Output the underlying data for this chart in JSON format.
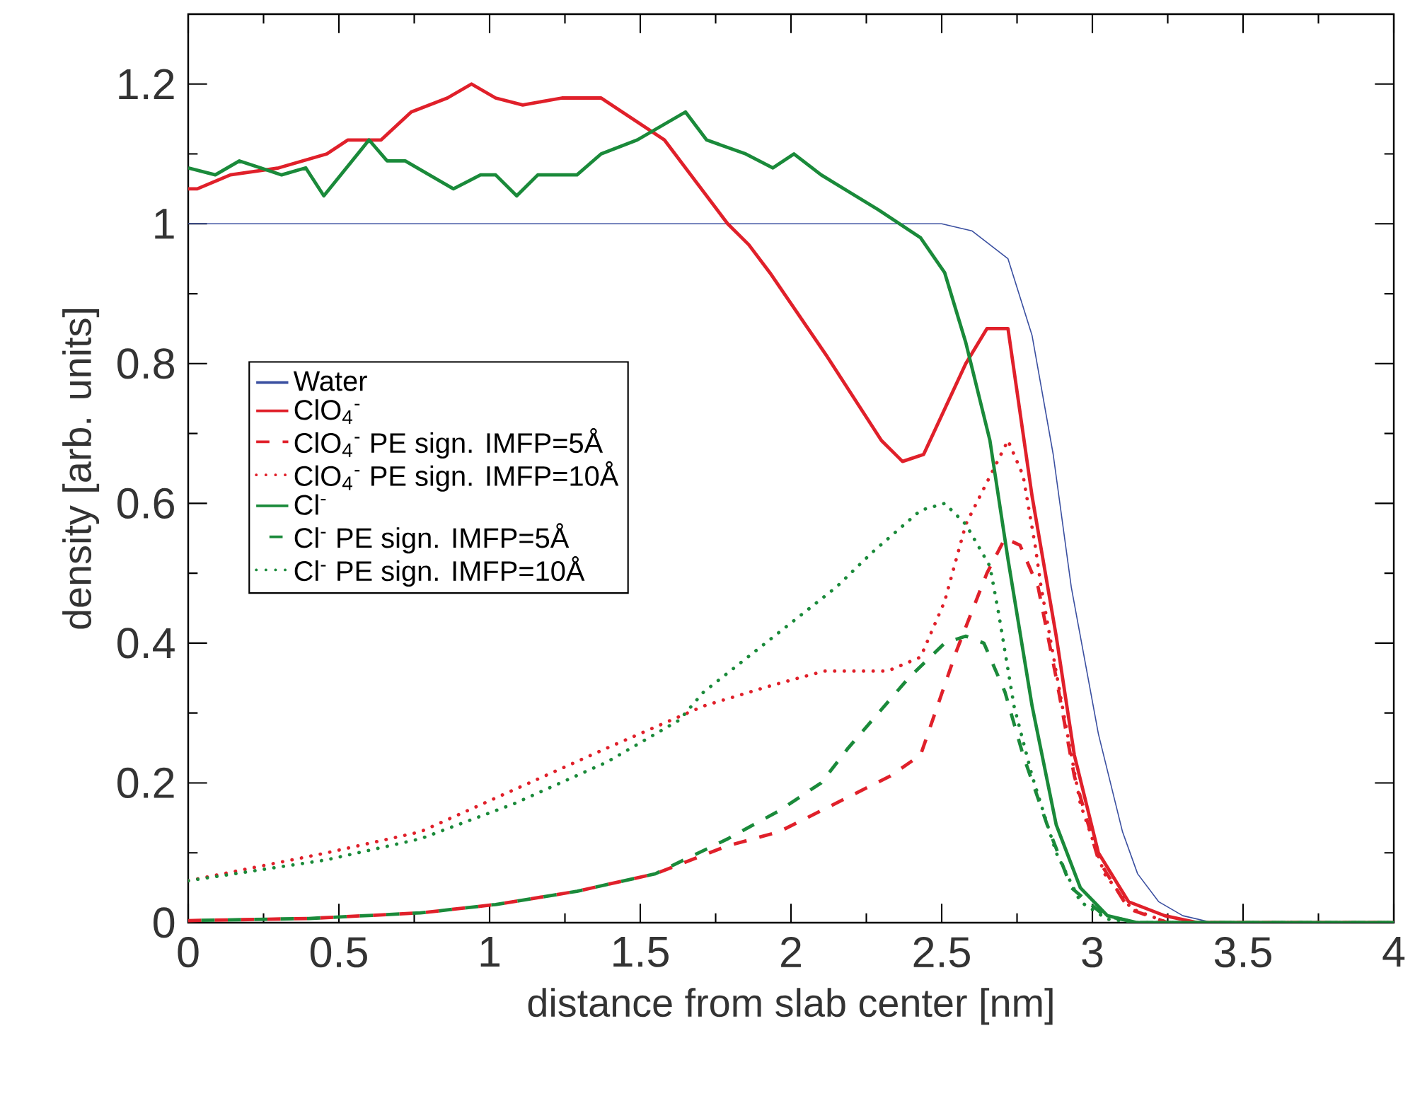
{
  "chart_data": {
    "type": "line",
    "xlabel": "distance from slab center [nm]",
    "ylabel": "density [arb. units]",
    "xlim": [
      0,
      4
    ],
    "ylim": [
      0,
      1.3
    ],
    "xticks": [
      0,
      0.5,
      1,
      1.5,
      2,
      2.5,
      3,
      3.5,
      4
    ],
    "yticks": [
      0,
      0.2,
      0.4,
      0.6,
      0.8,
      1,
      1.2
    ],
    "grid": false,
    "legend": "left",
    "marker": "none",
    "series": [
      {
        "name": "Water",
        "color": "#3a4fa0",
        "line_style": "solid",
        "x": [
          0,
          2.5,
          2.6,
          2.72,
          2.8,
          2.87,
          2.93,
          3.02,
          3.1,
          3.15,
          3.22,
          3.3,
          3.4,
          4
        ],
        "values": [
          1,
          1,
          0.99,
          0.95,
          0.84,
          0.67,
          0.48,
          0.27,
          0.13,
          0.07,
          0.03,
          0.01,
          0,
          0
        ]
      },
      {
        "name": "ClO$_{4}$$^{-}$",
        "color": "#e0202a",
        "line_style": "solid",
        "x": [
          0,
          0.03,
          0.14,
          0.3,
          0.46,
          0.53,
          0.64,
          0.74,
          0.86,
          0.94,
          1.02,
          1.11,
          1.24,
          1.37,
          1.58,
          1.79,
          1.86,
          1.93,
          2.12,
          2.3,
          2.37,
          2.44,
          2.58,
          2.65,
          2.72,
          2.8,
          2.88,
          2.94,
          3.02,
          3.12,
          3.24,
          3.35,
          4
        ],
        "values": [
          1.05,
          1.05,
          1.07,
          1.08,
          1.1,
          1.12,
          1.12,
          1.16,
          1.18,
          1.2,
          1.18,
          1.17,
          1.18,
          1.18,
          1.12,
          1.0,
          0.97,
          0.93,
          0.81,
          0.69,
          0.66,
          0.67,
          0.8,
          0.85,
          0.85,
          0.61,
          0.41,
          0.24,
          0.1,
          0.03,
          0.01,
          0,
          0
        ]
      },
      {
        "name": "ClO$_{4}$$^{-}$ PE sign. IMFP=5Å",
        "color": "#e0202a",
        "line_style": "dashed",
        "x": [
          0,
          0.4,
          0.77,
          1.02,
          1.29,
          1.55,
          1.79,
          1.96,
          2.33,
          2.43,
          2.55,
          2.65,
          2.71,
          2.76,
          2.82,
          2.88,
          2.94,
          3.02,
          3.12,
          3.25,
          4
        ],
        "values": [
          0.003,
          0.006,
          0.014,
          0.026,
          0.045,
          0.07,
          0.11,
          0.13,
          0.21,
          0.24,
          0.39,
          0.5,
          0.55,
          0.54,
          0.48,
          0.35,
          0.21,
          0.09,
          0.02,
          0,
          0
        ]
      },
      {
        "name": "ClO$_{4}$$^{-}$ PE sign. IMFP=10Å",
        "color": "#e0202a",
        "line_style": "dotted",
        "x": [
          0,
          0.46,
          0.77,
          1.08,
          1.39,
          1.71,
          1.94,
          2.11,
          2.32,
          2.43,
          2.51,
          2.58,
          2.65,
          2.72,
          2.77,
          2.81,
          2.83,
          2.9,
          2.96,
          3.04,
          3.13,
          3.25,
          4
        ],
        "values": [
          0.06,
          0.1,
          0.13,
          0.19,
          0.25,
          0.31,
          0.34,
          0.36,
          0.36,
          0.38,
          0.46,
          0.57,
          0.63,
          0.69,
          0.64,
          0.54,
          0.48,
          0.31,
          0.17,
          0.07,
          0.02,
          0,
          0
        ]
      },
      {
        "name": "Cl$^{-}$",
        "color": "#1a8a3a",
        "line_style": "solid",
        "x": [
          0,
          0.09,
          0.17,
          0.24,
          0.31,
          0.39,
          0.45,
          0.6,
          0.66,
          0.72,
          0.88,
          0.97,
          1.02,
          1.09,
          1.16,
          1.29,
          1.37,
          1.49,
          1.65,
          1.72,
          1.85,
          1.94,
          2.01,
          2.1,
          2.29,
          2.43,
          2.51,
          2.58,
          2.66,
          2.72,
          2.8,
          2.88,
          2.96,
          3.05,
          3.15,
          4
        ],
        "values": [
          1.08,
          1.07,
          1.09,
          1.08,
          1.07,
          1.08,
          1.04,
          1.12,
          1.09,
          1.09,
          1.05,
          1.07,
          1.07,
          1.04,
          1.07,
          1.07,
          1.1,
          1.12,
          1.16,
          1.12,
          1.1,
          1.08,
          1.1,
          1.07,
          1.02,
          0.98,
          0.93,
          0.83,
          0.69,
          0.52,
          0.31,
          0.14,
          0.05,
          0.01,
          0,
          0
        ]
      },
      {
        "name": "Cl$^{-}$ PE sign. IMFP=5Å",
        "color": "#1a8a3a",
        "line_style": "dashed",
        "x": [
          0,
          0.4,
          0.77,
          1.02,
          1.29,
          1.55,
          1.79,
          1.96,
          2.1,
          2.19,
          2.39,
          2.51,
          2.58,
          2.64,
          2.71,
          2.77,
          2.85,
          2.93,
          3.04,
          3.15,
          4
        ],
        "values": [
          0.003,
          0.006,
          0.014,
          0.026,
          0.045,
          0.07,
          0.12,
          0.16,
          0.2,
          0.25,
          0.35,
          0.4,
          0.41,
          0.4,
          0.33,
          0.24,
          0.14,
          0.05,
          0.01,
          0,
          0
        ]
      },
      {
        "name": "Cl$^{-}$ PE sign. IMFP=10Å",
        "color": "#1a8a3a",
        "line_style": "dotted",
        "x": [
          0,
          0.46,
          0.77,
          1.08,
          1.39,
          1.63,
          1.71,
          2.15,
          2.27,
          2.43,
          2.51,
          2.58,
          2.66,
          2.69,
          2.74,
          2.8,
          2.88,
          2.96,
          3.05,
          3.15,
          4
        ],
        "values": [
          0.06,
          0.09,
          0.12,
          0.17,
          0.23,
          0.29,
          0.33,
          0.48,
          0.53,
          0.59,
          0.6,
          0.57,
          0.51,
          0.44,
          0.31,
          0.21,
          0.1,
          0.03,
          0.005,
          0,
          0
        ]
      }
    ]
  }
}
